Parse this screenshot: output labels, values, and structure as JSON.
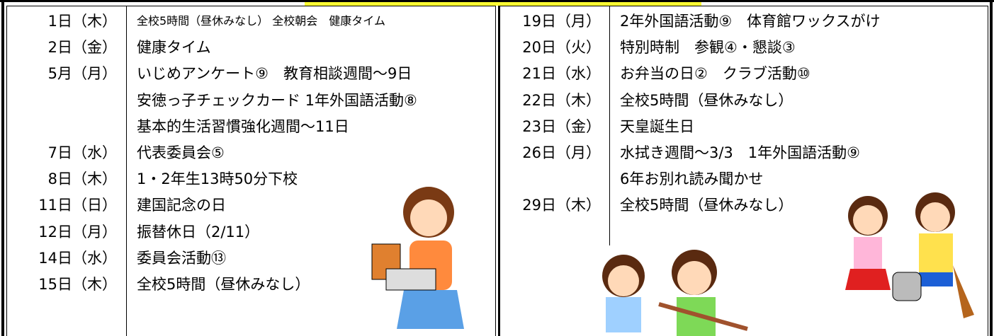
{
  "left": {
    "rows": [
      {
        "date": "1日（木）",
        "event": "全校5時間（昼休みなし） 全校朝会　健康タイム"
      },
      {
        "date": "2日（金）",
        "event": "健康タイム"
      },
      {
        "date": "5月（月）",
        "event": "いじめアンケート⑨　教育相談週間～9日"
      },
      {
        "event": "安徳っ子チェックカード 1年外国語活動⑧"
      },
      {
        "event": "基本的生活習慣強化週間～11日"
      },
      {
        "date": "7日（水）",
        "event": "代表委員会⑤"
      },
      {
        "date": "8日（木）",
        "event": "1・2年生13時50分下校"
      },
      {
        "date": "11日（日）",
        "event": "建国記念の日"
      },
      {
        "date": "12日（月）",
        "event": "振替休日（2/11）"
      },
      {
        "date": "14日（水）",
        "event": "委員会活動⑬"
      },
      {
        "date": "15日（木）",
        "event": "全校5時間（昼休みなし）"
      }
    ]
  },
  "right": {
    "rows": [
      {
        "date": "19日（月）",
        "event": "2年外国語活動⑨　体育館ワックスがけ"
      },
      {
        "date": "20日（火）",
        "event": "特別時制　参観④・懇談③"
      },
      {
        "date": "21日（水）",
        "event": "お弁当の日②　クラブ活動⑩"
      },
      {
        "date": "22日（木）",
        "event": "全校5時間（昼休みなし）"
      },
      {
        "date": "23日（金）",
        "event": "天皇誕生日"
      },
      {
        "date": "26日（月）",
        "event": "水拭き週間～3/3　1年外国語活動⑨"
      },
      {
        "event": "6年お別れ読み聞かせ"
      },
      {
        "date": "29日（木）",
        "event": "全校5時間（昼休みなし）"
      }
    ]
  }
}
